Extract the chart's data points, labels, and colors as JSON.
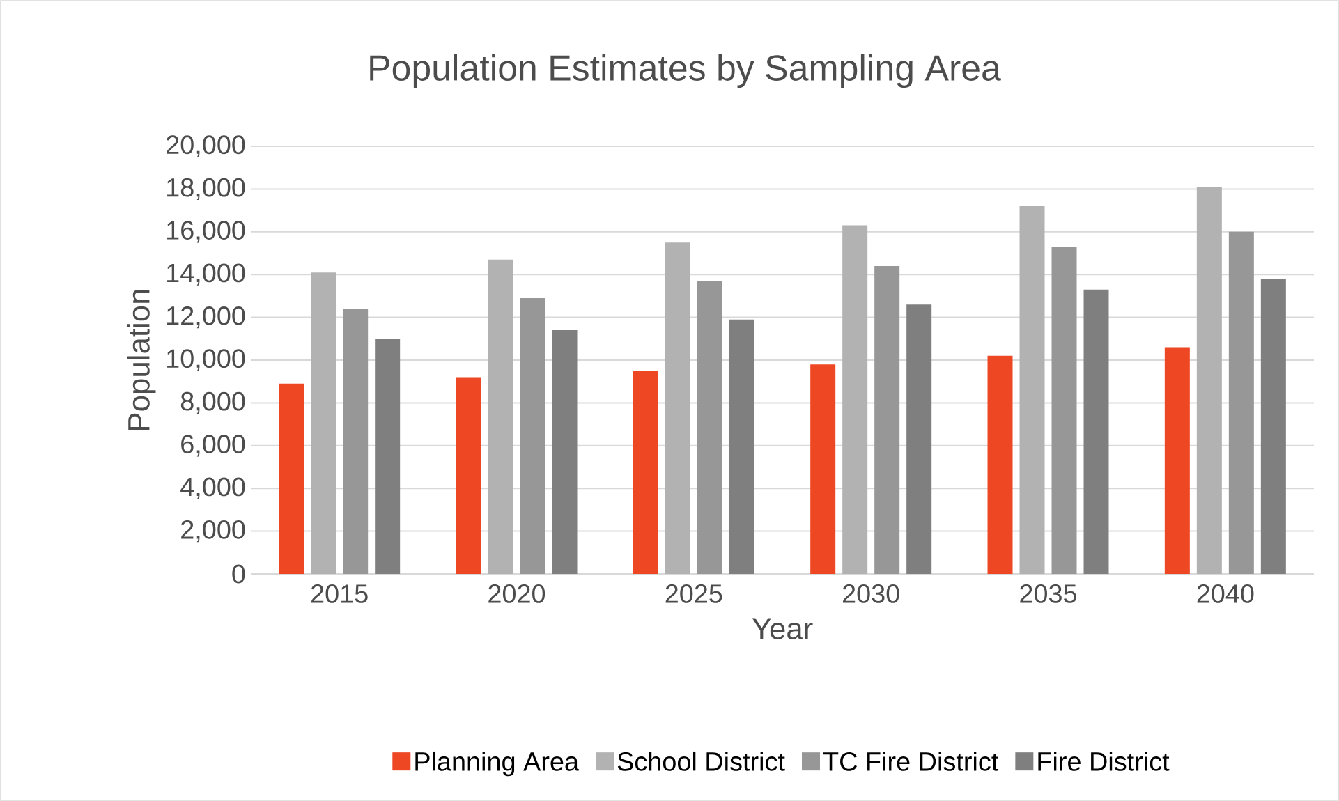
{
  "chart_data": {
    "type": "bar",
    "title": "Population Estimates by Sampling Area",
    "xlabel": "Year",
    "ylabel": "Population",
    "categories": [
      "2015",
      "2020",
      "2025",
      "2030",
      "2035",
      "2040"
    ],
    "series": [
      {
        "name": "Planning Area",
        "color": "#ee4724",
        "values": [
          8900,
          9200,
          9500,
          9800,
          10200,
          10600
        ]
      },
      {
        "name": "School District",
        "color": "#b2b2b2",
        "values": [
          14100,
          14700,
          15500,
          16300,
          17200,
          18100
        ]
      },
      {
        "name": "TC Fire District",
        "color": "#979797",
        "values": [
          12400,
          12900,
          13700,
          14400,
          15300,
          16000
        ]
      },
      {
        "name": "Fire District",
        "color": "#7f7f7f",
        "values": [
          11000,
          11400,
          11900,
          12600,
          13300,
          13800
        ]
      }
    ],
    "ylim": [
      0,
      20000
    ],
    "yticks": [
      0,
      {
        "value": 2000,
        "label": "2,000"
      },
      {
        "value": 4000,
        "label": "4,000"
      },
      {
        "value": 6000,
        "label": "6,000"
      },
      {
        "value": 8000,
        "label": "8,000"
      },
      {
        "value": 10000,
        "label": "10,000"
      },
      {
        "value": 12000,
        "label": "12,000"
      },
      {
        "value": 14000,
        "label": "14,000"
      },
      {
        "value": 16000,
        "label": "16,000"
      },
      {
        "value": 18000,
        "label": "18,000"
      },
      {
        "value": 20000,
        "label": "20,000"
      }
    ],
    "grid": "y",
    "legend": "bottom"
  }
}
